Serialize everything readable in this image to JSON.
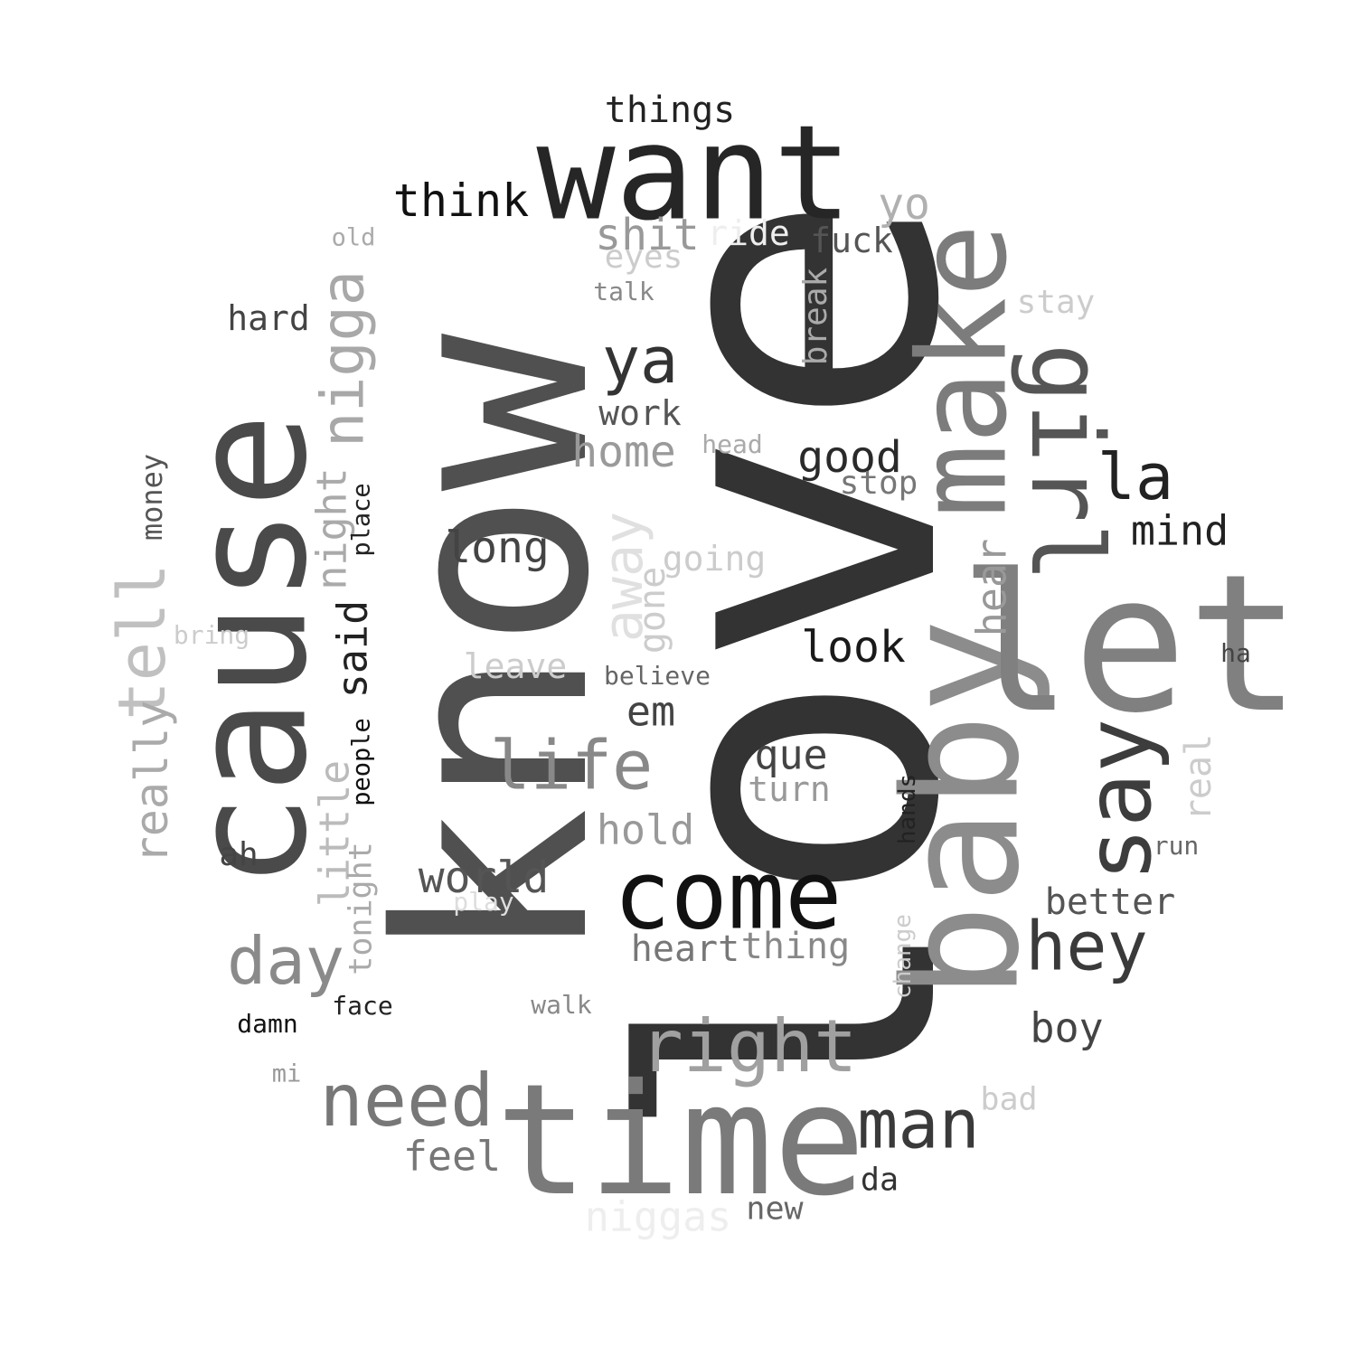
{
  "words": [
    {
      "text": "love",
      "color": "#333333"
    },
    {
      "text": "know",
      "color": "#505050"
    },
    {
      "text": "cause",
      "color": "#4a4a4a"
    },
    {
      "text": "want",
      "color": "#262626"
    },
    {
      "text": "time",
      "color": "#7a7a7a"
    },
    {
      "text": "baby",
      "color": "#8c8c8c"
    },
    {
      "text": "let",
      "color": "#808080"
    },
    {
      "text": "make",
      "color": "#7c7c7c"
    },
    {
      "text": "girl",
      "color": "#555555"
    },
    {
      "text": "come",
      "color": "#111111"
    },
    {
      "text": "say",
      "color": "#3d3d3d"
    },
    {
      "text": "right",
      "color": "#a0a0a0"
    },
    {
      "text": "need",
      "color": "#777777"
    },
    {
      "text": "man",
      "color": "#3a3a3a"
    },
    {
      "text": "life",
      "color": "#888888"
    },
    {
      "text": "hey",
      "color": "#3a3a3a"
    },
    {
      "text": "day",
      "color": "#8a8a8a"
    },
    {
      "text": "nigga",
      "color": "#a8a8a8"
    },
    {
      "text": "tell",
      "color": "#c0c0c0"
    },
    {
      "text": "ya",
      "color": "#333333"
    },
    {
      "text": "la",
      "color": "#222222"
    },
    {
      "text": "think",
      "color": "#111111"
    },
    {
      "text": "away",
      "color": "#e0e0e0"
    },
    {
      "text": "really",
      "color": "#aaaaaa"
    },
    {
      "text": "long",
      "color": "#444444"
    },
    {
      "text": "look",
      "color": "#1a1a1a"
    },
    {
      "text": "good",
      "color": "#2a2a2a"
    },
    {
      "text": "world",
      "color": "#555555"
    },
    {
      "text": "shit",
      "color": "#999999"
    },
    {
      "text": "yo",
      "color": "#b0b0b0"
    },
    {
      "text": "home",
      "color": "#9a9a9a"
    },
    {
      "text": "que",
      "color": "#444444"
    },
    {
      "text": "night",
      "color": "#aaaaaa"
    },
    {
      "text": "little",
      "color": "#bbbbbb"
    },
    {
      "text": "said",
      "color": "#222222"
    },
    {
      "text": "hear",
      "color": "#999999"
    },
    {
      "text": "hold",
      "color": "#999999"
    },
    {
      "text": "em",
      "color": "#444444"
    },
    {
      "text": "mind",
      "color": "#222222"
    },
    {
      "text": "things",
      "color": "#222222"
    },
    {
      "text": "heart",
      "color": "#777777"
    },
    {
      "text": "thing",
      "color": "#888888"
    },
    {
      "text": "feel",
      "color": "#777777"
    },
    {
      "text": "boy",
      "color": "#444444"
    },
    {
      "text": "better",
      "color": "#555555"
    },
    {
      "text": "fuck",
      "color": "#555555"
    },
    {
      "text": "gone",
      "color": "#cccccc"
    },
    {
      "text": "going",
      "color": "#cccccc"
    },
    {
      "text": "niggas",
      "color": "#eeeeee"
    },
    {
      "text": "real",
      "color": "#cccccc"
    },
    {
      "text": "hard",
      "color": "#444444"
    },
    {
      "text": "work",
      "color": "#555555"
    },
    {
      "text": "turn",
      "color": "#999999"
    },
    {
      "text": "stop",
      "color": "#777777"
    },
    {
      "text": "tonight",
      "color": "#aaaaaa"
    },
    {
      "text": "eyes",
      "color": "#cccccc"
    },
    {
      "text": "leave",
      "color": "#cccccc"
    },
    {
      "text": "ride",
      "color": "#eeeeee"
    },
    {
      "text": "break",
      "color": "#aaaaaa"
    },
    {
      "text": "stay",
      "color": "#cccccc"
    },
    {
      "text": "ah",
      "color": "#444444"
    },
    {
      "text": "money",
      "color": "#555555"
    },
    {
      "text": "new",
      "color": "#666666"
    },
    {
      "text": "da",
      "color": "#333333"
    },
    {
      "text": "bad",
      "color": "#cccccc"
    },
    {
      "text": "believe",
      "color": "#666666"
    },
    {
      "text": "place",
      "color": "#222222"
    },
    {
      "text": "people",
      "color": "#111111"
    },
    {
      "text": "face",
      "color": "#222222"
    },
    {
      "text": "damn",
      "color": "#111111"
    },
    {
      "text": "walk",
      "color": "#888888"
    },
    {
      "text": "play",
      "color": "#dddddd"
    },
    {
      "text": "talk",
      "color": "#888888"
    },
    {
      "text": "head",
      "color": "#aaaaaa"
    },
    {
      "text": "bring",
      "color": "#cccccc"
    },
    {
      "text": "hands",
      "color": "#222222"
    },
    {
      "text": "change",
      "color": "#cccccc"
    },
    {
      "text": "run",
      "color": "#666666"
    },
    {
      "text": "ha",
      "color": "#444444"
    },
    {
      "text": "old",
      "color": "#aaaaaa"
    },
    {
      "text": "mi",
      "color": "#999999"
    }
  ]
}
